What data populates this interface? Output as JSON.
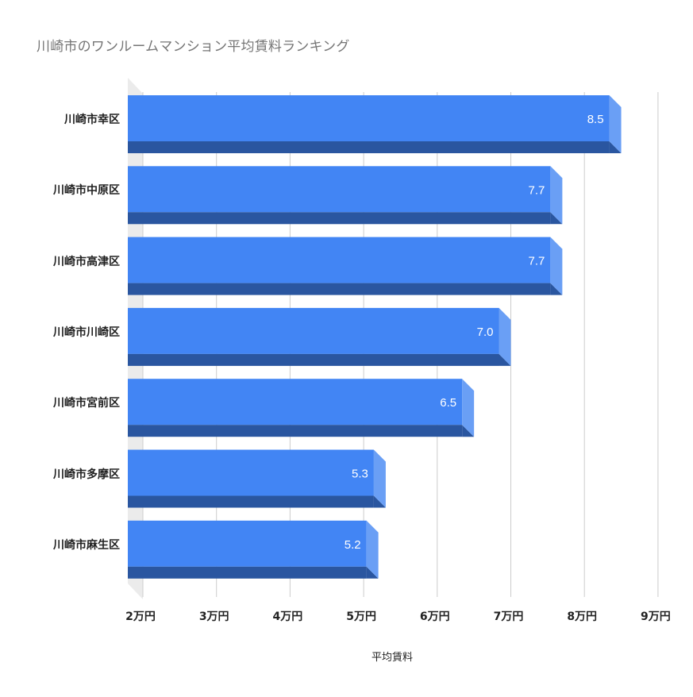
{
  "chart_data": {
    "type": "bar",
    "orientation": "horizontal",
    "style": "3d",
    "title": "川崎市のワンルームマンション平均賃料ランキング",
    "xlabel": "平均賃料",
    "ylabel": "",
    "categories": [
      "川崎市幸区",
      "川崎市中原区",
      "川崎市高津区",
      "川崎市川崎区",
      "川崎市宮前区",
      "川崎市多摩区",
      "川崎市麻生区"
    ],
    "values": [
      8.5,
      7.7,
      7.7,
      7.0,
      6.5,
      5.3,
      5.2
    ],
    "value_labels": [
      "8.5",
      "7.7",
      "7.7",
      "7.0",
      "6.5",
      "5.3",
      "5.2"
    ],
    "xlim": [
      2,
      9
    ],
    "x_ticks": [
      2,
      3,
      4,
      5,
      6,
      7,
      8,
      9
    ],
    "x_tick_labels": [
      "2万円",
      "3万円",
      "4万円",
      "5万円",
      "6万円",
      "7万円",
      "8万円",
      "9万円"
    ],
    "grid": "vertical",
    "legend": "none",
    "colors": {
      "bar_front": "#4285f4",
      "bar_bottom": "#2a56a0",
      "bar_side": "#6a9ff5",
      "back_wall": "#ebebeb",
      "grid": "#cccccc",
      "title": "#757575",
      "label": "#222222",
      "value_label": "#ffffff"
    }
  }
}
